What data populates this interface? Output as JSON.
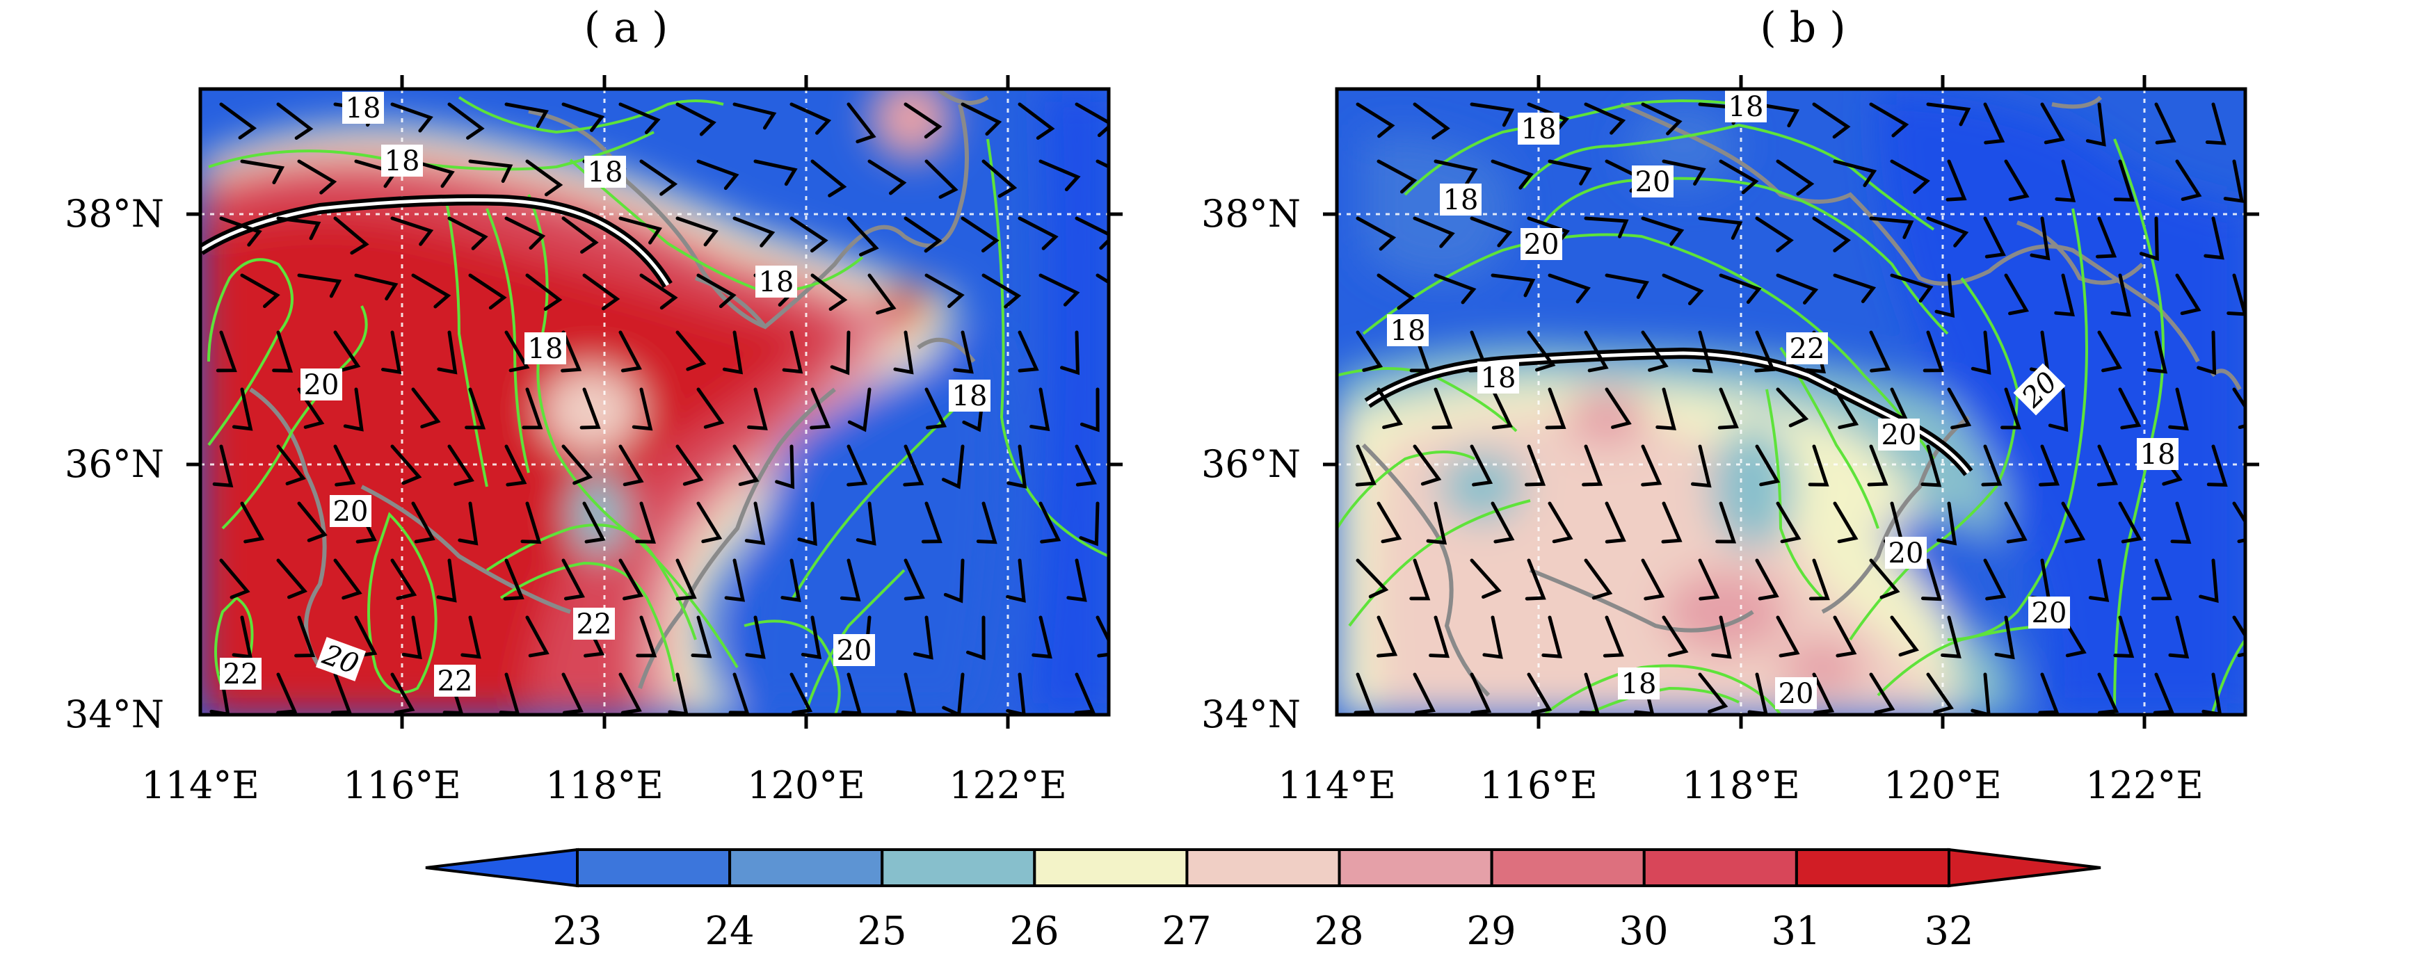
{
  "panels": [
    {
      "id": "a",
      "title": "( a )",
      "lat_labels": [
        "38°N",
        "36°N",
        "34°N"
      ],
      "lon_labels": [
        "114°E",
        "116°E",
        "118°E",
        "120°E",
        "122°E"
      ],
      "contour_labels": [
        "18",
        "18",
        "18",
        "18",
        "18",
        "18",
        "20",
        "20",
        "20",
        "22",
        "22",
        "22",
        "20"
      ]
    },
    {
      "id": "b",
      "title": "( b )",
      "lat_labels": [
        "38°N",
        "36°N",
        "34°N"
      ],
      "lon_labels": [
        "114°E",
        "116°E",
        "118°E",
        "120°E",
        "122°E"
      ],
      "contour_labels": [
        "18",
        "18",
        "20",
        "18",
        "20",
        "18",
        "22",
        "18",
        "20",
        "20",
        "20",
        "20",
        "18",
        "20",
        "18"
      ]
    }
  ],
  "colorbar": {
    "ticks": [
      "23",
      "24",
      "25",
      "26",
      "27",
      "28",
      "29",
      "30",
      "31",
      "32"
    ],
    "colors": [
      "#1f5ae6",
      "#3c76dc",
      "#5d94d3",
      "#87bfcc",
      "#f3f3c8",
      "#f0cfc5",
      "#e5a0a8",
      "#dd707e",
      "#d84659",
      "#d11d25"
    ]
  },
  "map_extent": {
    "lon": [
      114,
      123
    ],
    "lat": [
      34,
      39
    ]
  },
  "colors": {
    "contour": "#5ee33a",
    "coast": "#8a8a8a",
    "barb": "#000000",
    "trough": "#000000",
    "grid": "#ffffff"
  }
}
